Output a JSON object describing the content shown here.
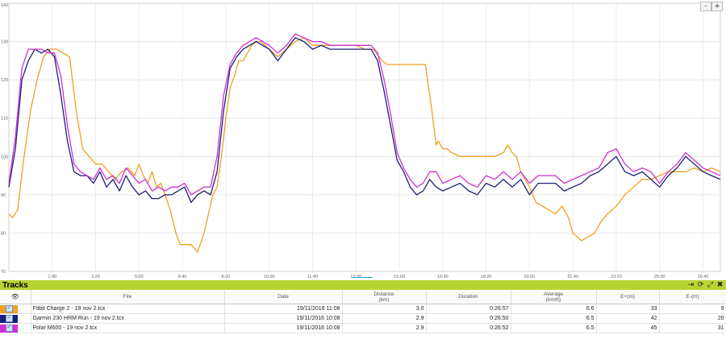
{
  "chart_data": {
    "type": "line",
    "ylim": [
      70,
      140
    ],
    "yticks": [
      "70",
      "80",
      "90",
      "100",
      "110",
      "120",
      "130",
      "140"
    ],
    "xlim": [
      0,
      1640
    ],
    "xticks": [
      {
        "value": 100,
        "label": "1:40"
      },
      {
        "value": 200,
        "label": "3:20"
      },
      {
        "value": 300,
        "label": "5:00"
      },
      {
        "value": 400,
        "label": "6:40"
      },
      {
        "value": 500,
        "label": "8:20"
      },
      {
        "value": 600,
        "label": "10:00"
      },
      {
        "value": 700,
        "label": "11:40"
      },
      {
        "value": 800,
        "label": "13:20"
      },
      {
        "value": 900,
        "label": "15:00"
      },
      {
        "value": 1000,
        "label": "16:40"
      },
      {
        "value": 1100,
        "label": "18:20"
      },
      {
        "value": 1200,
        "label": "20:00"
      },
      {
        "value": 1300,
        "label": "21:40"
      },
      {
        "value": 1400,
        "label": "23:20"
      },
      {
        "value": 1500,
        "label": "25:00"
      },
      {
        "value": 1600,
        "label": "26:40"
      }
    ],
    "series": [
      {
        "name": "Fitbit Charge 2 - 19 nov 2.tcx",
        "color": "#f0a020",
        "x": [
          0,
          8,
          20,
          35,
          50,
          65,
          80,
          95,
          110,
          125,
          140,
          155,
          170,
          185,
          200,
          215,
          230,
          245,
          260,
          275,
          290,
          300,
          310,
          320,
          330,
          340,
          350,
          360,
          372,
          385,
          395,
          405,
          420,
          435,
          450,
          460,
          470,
          480,
          490,
          500,
          510,
          520,
          530,
          540,
          550,
          560,
          570,
          580,
          590,
          600,
          620,
          640,
          660,
          680,
          700,
          720,
          740,
          760,
          780,
          800,
          820,
          840,
          860,
          872,
          885,
          900,
          930,
          960,
          975,
          985,
          990,
          1000,
          1010,
          1020,
          1040,
          1060,
          1080,
          1100,
          1120,
          1140,
          1150,
          1160,
          1170,
          1180,
          1200,
          1215,
          1230,
          1245,
          1260,
          1275,
          1290,
          1300,
          1310,
          1320,
          1335,
          1350,
          1365,
          1380,
          1400,
          1420,
          1440,
          1460,
          1480,
          1500,
          1520,
          1540,
          1560,
          1580,
          1600,
          1620,
          1640
        ],
        "y": [
          85,
          84,
          86,
          100,
          112,
          120,
          126,
          128,
          128,
          127,
          126,
          112,
          102,
          100,
          98,
          98,
          96,
          94,
          96,
          97,
          95,
          98,
          95,
          93,
          96,
          92,
          93,
          90,
          86,
          80,
          77,
          77,
          77,
          75,
          80,
          85,
          90,
          92,
          100,
          110,
          118,
          121,
          125,
          125,
          127,
          129,
          130,
          130,
          129,
          128,
          126,
          128,
          130,
          131,
          129,
          129,
          129,
          129,
          129,
          129,
          128,
          128,
          125,
          124,
          124,
          124,
          124,
          124,
          112,
          103,
          104,
          102,
          102,
          101,
          100,
          100,
          100,
          100,
          100,
          101,
          103,
          101,
          100,
          96,
          92,
          88,
          87,
          86,
          85,
          87,
          84,
          80,
          79,
          78,
          79,
          80,
          83,
          85,
          87,
          90,
          92,
          94,
          94,
          95,
          96,
          96,
          96,
          97,
          96,
          97,
          96
        ]
      },
      {
        "name": "Garmin 230 HRM Run - 19 nov 2.tcx",
        "color": "#1a1f7a",
        "x": [
          0,
          15,
          30,
          45,
          60,
          75,
          90,
          105,
          120,
          135,
          150,
          165,
          180,
          195,
          210,
          225,
          240,
          255,
          270,
          285,
          300,
          315,
          330,
          345,
          360,
          375,
          390,
          405,
          420,
          435,
          450,
          465,
          480,
          495,
          510,
          525,
          540,
          555,
          570,
          585,
          600,
          620,
          640,
          660,
          680,
          700,
          720,
          740,
          760,
          780,
          800,
          820,
          835,
          850,
          865,
          880,
          895,
          910,
          925,
          940,
          955,
          970,
          985,
          1000,
          1020,
          1040,
          1060,
          1080,
          1100,
          1120,
          1140,
          1160,
          1180,
          1200,
          1220,
          1240,
          1260,
          1280,
          1300,
          1320,
          1340,
          1360,
          1380,
          1400,
          1420,
          1440,
          1460,
          1480,
          1500,
          1520,
          1540,
          1560,
          1580,
          1600,
          1620,
          1640
        ],
        "y": [
          92,
          102,
          120,
          125,
          128,
          127,
          128,
          126,
          116,
          104,
          96,
          95,
          95,
          93,
          96,
          92,
          94,
          91,
          95,
          92,
          90,
          91,
          89,
          89,
          90,
          90,
          91,
          92,
          88,
          90,
          91,
          90,
          96,
          112,
          123,
          126,
          128,
          129,
          130,
          129,
          128,
          125,
          128,
          131,
          130,
          128,
          129,
          128,
          128,
          128,
          128,
          128,
          128,
          125,
          117,
          108,
          99,
          96,
          92,
          90,
          91,
          94,
          92,
          91,
          92,
          93,
          91,
          90,
          93,
          92,
          94,
          92,
          94,
          90,
          93,
          93,
          93,
          91,
          92,
          93,
          95,
          96,
          98,
          100,
          96,
          95,
          96,
          94,
          92,
          95,
          97,
          100,
          98,
          96,
          95,
          94
        ]
      },
      {
        "name": "Polar M600 - 19 nov 2.tcx",
        "color": "#d22fd6",
        "x": [
          0,
          15,
          30,
          45,
          60,
          75,
          90,
          105,
          120,
          135,
          150,
          165,
          180,
          195,
          210,
          225,
          240,
          255,
          270,
          285,
          300,
          315,
          330,
          345,
          360,
          375,
          390,
          405,
          420,
          435,
          450,
          465,
          480,
          495,
          510,
          525,
          540,
          555,
          570,
          585,
          600,
          620,
          640,
          660,
          680,
          700,
          720,
          740,
          760,
          780,
          800,
          820,
          835,
          850,
          865,
          880,
          895,
          910,
          925,
          940,
          955,
          970,
          985,
          1000,
          1020,
          1040,
          1060,
          1080,
          1100,
          1120,
          1140,
          1160,
          1180,
          1200,
          1220,
          1240,
          1260,
          1280,
          1300,
          1320,
          1340,
          1360,
          1380,
          1400,
          1420,
          1440,
          1460,
          1480,
          1500,
          1520,
          1540,
          1560,
          1580,
          1600,
          1620,
          1640
        ],
        "y": [
          93,
          105,
          123,
          128,
          128,
          128,
          127,
          127,
          121,
          108,
          98,
          96,
          95,
          94,
          97,
          94,
          95,
          93,
          97,
          95,
          93,
          94,
          91,
          92,
          91,
          92,
          92,
          93,
          90,
          91,
          92,
          92,
          100,
          116,
          124,
          127,
          129,
          130,
          131,
          130,
          129,
          127,
          129,
          132,
          131,
          130,
          130,
          129,
          129,
          129,
          129,
          129,
          129,
          127,
          120,
          111,
          101,
          97,
          94,
          92,
          93,
          96,
          96,
          93,
          94,
          95,
          93,
          92,
          95,
          94,
          96,
          94,
          96,
          93,
          95,
          95,
          95,
          93,
          94,
          95,
          96,
          97,
          101,
          102,
          98,
          96,
          97,
          96,
          93,
          96,
          98,
          101,
          99,
          97,
          96,
          95
        ]
      }
    ]
  },
  "zoom": {
    "minus": "-",
    "plus": "+"
  },
  "tracks": {
    "title": "Tracks",
    "header_icons": [
      "⇥",
      "⟳",
      "⤢",
      "✖"
    ],
    "columns": {
      "file": "File",
      "date": "Date",
      "distance": "Distance\n(km)",
      "duration": "Duration",
      "average": "Average\n(km/h)",
      "eplus": "E+(m)",
      "eminus": "E-(m)"
    },
    "rows": [
      {
        "color": "#f0a020",
        "checked": "✓",
        "file": "Fitbit Charge 2 - 19 nov 2.tcx",
        "date": "19/11/2016 11:08",
        "distance": "3.0",
        "duration": "0:26:57",
        "average": "6.6",
        "eplus": "33",
        "eminus": "9"
      },
      {
        "color": "#1a1f7a",
        "checked": "✓",
        "file": "Garmin 230 HRM Run - 19 nov 2.tcx",
        "date": "19/11/2016 10:08",
        "distance": "2.9",
        "duration": "0:26:50",
        "average": "6.5",
        "eplus": "42",
        "eminus": "20"
      },
      {
        "color": "#d22fd6",
        "checked": "✓",
        "file": "Polar M600 - 19 nov 2.tcx",
        "date": "19/11/2016 10:08",
        "distance": "2.9",
        "duration": "0:26:52",
        "average": "6.5",
        "eplus": "45",
        "eminus": "31"
      }
    ]
  }
}
